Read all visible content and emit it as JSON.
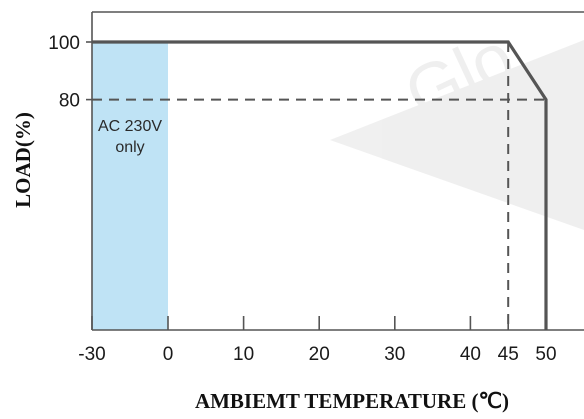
{
  "chart_data": {
    "type": "line",
    "title": "",
    "xlabel": "AMBIEMT TEMPERATURE (℃)",
    "ylabel": "LOAD(%)",
    "xlim": [
      -30,
      55
    ],
    "ylim": [
      0,
      105
    ],
    "x_ticks": [
      -30,
      0,
      10,
      20,
      30,
      40,
      45,
      50
    ],
    "x_tick_labels": [
      "-30",
      "0",
      "10",
      "20",
      "30",
      "40",
      "45",
      "50"
    ],
    "y_ticks": [
      80,
      100
    ],
    "y_tick_labels": [
      "80",
      "100"
    ],
    "grid": false,
    "series": [
      {
        "style": "solid",
        "x": [
          -30,
          45,
          50,
          50
        ],
        "y": [
          100,
          100,
          80,
          0
        ]
      },
      {
        "style": "dashed",
        "x": [
          -30,
          50
        ],
        "y": [
          80,
          80
        ]
      },
      {
        "style": "dashed",
        "x": [
          45,
          45
        ],
        "y": [
          100,
          0
        ]
      }
    ],
    "shaded_region": {
      "x_range": [
        -30,
        0
      ],
      "y_range": [
        0,
        100
      ],
      "color": "#bfe3f5",
      "label_lines": [
        "AC 230V",
        "only"
      ]
    },
    "colors": {
      "line": "#555555",
      "axis": "#555555",
      "shade": "#bfe3f5"
    }
  }
}
